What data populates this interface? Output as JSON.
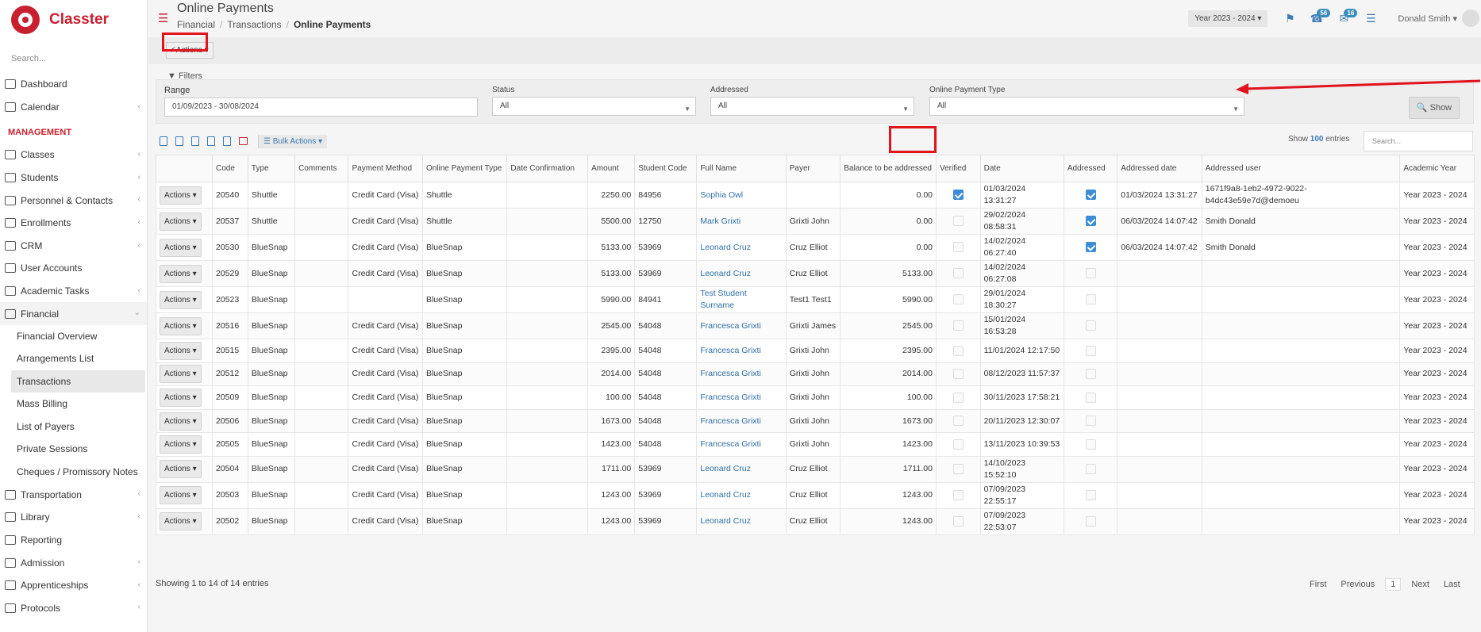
{
  "app": {
    "name": "Classter",
    "search_placeholder": "Search..."
  },
  "sidebar": {
    "top_items": [
      {
        "label": "Dashboard",
        "icon": "laptop-icon"
      },
      {
        "label": "Calendar",
        "icon": "calendar-icon",
        "chevron": "‹"
      }
    ],
    "section": "MANAGEMENT",
    "items": [
      {
        "label": "Classes",
        "icon": "classes-icon",
        "chevron": "‹"
      },
      {
        "label": "Students",
        "icon": "students-icon",
        "chevron": "‹"
      },
      {
        "label": "Personnel & Contacts",
        "icon": "personnel-icon",
        "chevron": "‹"
      },
      {
        "label": "Enrollments",
        "icon": "enrollments-icon",
        "chevron": "‹"
      },
      {
        "label": "CRM",
        "icon": "crm-icon",
        "chevron": "‹"
      },
      {
        "label": "User Accounts",
        "icon": "key-icon"
      },
      {
        "label": "Academic Tasks",
        "icon": "tasks-icon",
        "chevron": "‹"
      },
      {
        "label": "Financial",
        "icon": "financial-icon",
        "chevron": "⌄"
      }
    ],
    "financial_sub": [
      "Financial Overview",
      "Arrangements List",
      "Transactions",
      "Mass Billing",
      "List of Payers",
      "Private Sessions",
      "Cheques / Promissory Notes"
    ],
    "bottom_items": [
      {
        "label": "Transportation",
        "icon": "bus-icon",
        "chevron": "‹"
      },
      {
        "label": "Library",
        "icon": "library-icon",
        "chevron": "‹"
      },
      {
        "label": "Reporting",
        "icon": "printer-icon"
      },
      {
        "label": "Admission",
        "icon": "admission-icon",
        "chevron": "‹"
      },
      {
        "label": "Apprenticeships",
        "icon": "apprentice-icon",
        "chevron": "‹"
      },
      {
        "label": "Protocols",
        "icon": "protocols-icon",
        "chevron": "‹"
      }
    ]
  },
  "header": {
    "title": "Online Payments",
    "breadcrumb": [
      "Financial",
      "Transactions",
      "Online Payments"
    ],
    "year": "Year 2023 - 2024",
    "notifications": "56",
    "messages": "16",
    "user": "Donald Smith"
  },
  "toolbar": {
    "actions_label": "Actions"
  },
  "filters": {
    "title": "Filters",
    "range_label": "Range",
    "range_value": "01/09/2023 - 30/08/2024",
    "status_label": "Status",
    "status_value": "All",
    "addressed_label": "Addressed",
    "addressed_value": "All",
    "type_label": "Online Payment Type",
    "type_value": "All",
    "show_label": "Show"
  },
  "table_tools": {
    "bulk_label": "Bulk Actions",
    "show_prefix": "Show",
    "show_count": "100",
    "show_suffix": "entries",
    "search_placeholder": "Search..."
  },
  "columns": [
    "",
    "Code",
    "Type",
    "Comments",
    "Payment Method",
    "Online Payment Type",
    "Date Confirmation",
    "Amount",
    "Student Code",
    "Full Name",
    "Payer",
    "Balance to be addressed",
    "Verified",
    "Date",
    "Addressed",
    "Addressed date",
    "Addressed user",
    "Academic Year"
  ],
  "row_action_label": "Actions",
  "rows": [
    {
      "code": "20540",
      "type": "Shuttle",
      "method": "Credit Card (Visa)",
      "optype": "Shuttle",
      "amount": "2250.00",
      "scode": "84956",
      "name": "Sophia Owl",
      "payer": "",
      "balance": "0.00",
      "verified": true,
      "date": "01/03/2024 13:31:27",
      "addressed": true,
      "adate": "01/03/2024 13:31:27",
      "auser": "1671f9a8-1eb2-4972-9022-b4dc43e59e7d@demoeu",
      "year": "Year 2023 - 2024"
    },
    {
      "code": "20537",
      "type": "Shuttle",
      "method": "Credit Card (Visa)",
      "optype": "Shuttle",
      "amount": "5500.00",
      "scode": "12750",
      "name": "Mark Grixti",
      "payer": "Grixti John",
      "balance": "0.00",
      "verified": false,
      "date": "29/02/2024 08:58:31",
      "addressed": true,
      "adate": "06/03/2024 14:07:42",
      "auser": "Smith Donald",
      "year": "Year 2023 - 2024"
    },
    {
      "code": "20530",
      "type": "BlueSnap",
      "method": "Credit Card (Visa)",
      "optype": "BlueSnap",
      "amount": "5133.00",
      "scode": "53969",
      "name": "Leonard Cruz",
      "payer": "Cruz Elliot",
      "balance": "0.00",
      "verified": false,
      "date": "14/02/2024 06:27:40",
      "addressed": true,
      "adate": "06/03/2024 14:07:42",
      "auser": "Smith Donald",
      "year": "Year 2023 - 2024"
    },
    {
      "code": "20529",
      "type": "BlueSnap",
      "method": "Credit Card (Visa)",
      "optype": "BlueSnap",
      "amount": "5133.00",
      "scode": "53969",
      "name": "Leonard Cruz",
      "payer": "Cruz Elliot",
      "balance": "5133.00",
      "verified": false,
      "date": "14/02/2024 06:27:08",
      "addressed": false,
      "adate": "",
      "auser": "",
      "year": "Year 2023 - 2024"
    },
    {
      "code": "20523",
      "type": "BlueSnap",
      "method": "",
      "optype": "BlueSnap",
      "amount": "5990.00",
      "scode": "84941",
      "name": "Test Student Surname",
      "payer": "Test1 Test1",
      "balance": "5990.00",
      "verified": false,
      "date": "29/01/2024 18:30:27",
      "addressed": false,
      "adate": "",
      "auser": "",
      "year": "Year 2023 - 2024"
    },
    {
      "code": "20516",
      "type": "BlueSnap",
      "method": "Credit Card (Visa)",
      "optype": "BlueSnap",
      "amount": "2545.00",
      "scode": "54048",
      "name": "Francesca Grixti",
      "payer": "Grixti James",
      "balance": "2545.00",
      "verified": false,
      "date": "15/01/2024 16:53:28",
      "addressed": false,
      "adate": "",
      "auser": "",
      "year": "Year 2023 - 2024"
    },
    {
      "code": "20515",
      "type": "BlueSnap",
      "method": "Credit Card (Visa)",
      "optype": "BlueSnap",
      "amount": "2395.00",
      "scode": "54048",
      "name": "Francesca Grixti",
      "payer": "Grixti John",
      "balance": "2395.00",
      "verified": false,
      "date": "11/01/2024 12:17:50",
      "addressed": false,
      "adate": "",
      "auser": "",
      "year": "Year 2023 - 2024"
    },
    {
      "code": "20512",
      "type": "BlueSnap",
      "method": "Credit Card (Visa)",
      "optype": "BlueSnap",
      "amount": "2014.00",
      "scode": "54048",
      "name": "Francesca Grixti",
      "payer": "Grixti John",
      "balance": "2014.00",
      "verified": false,
      "date": "08/12/2023 11:57:37",
      "addressed": false,
      "adate": "",
      "auser": "",
      "year": "Year 2023 - 2024"
    },
    {
      "code": "20509",
      "type": "BlueSnap",
      "method": "Credit Card (Visa)",
      "optype": "BlueSnap",
      "amount": "100.00",
      "scode": "54048",
      "name": "Francesca Grixti",
      "payer": "Grixti John",
      "balance": "100.00",
      "verified": false,
      "date": "30/11/2023 17:58:21",
      "addressed": false,
      "adate": "",
      "auser": "",
      "year": "Year 2023 - 2024"
    },
    {
      "code": "20506",
      "type": "BlueSnap",
      "method": "Credit Card (Visa)",
      "optype": "BlueSnap",
      "amount": "1673.00",
      "scode": "54048",
      "name": "Francesca Grixti",
      "payer": "Grixti John",
      "balance": "1673.00",
      "verified": false,
      "date": "20/11/2023 12:30:07",
      "addressed": false,
      "adate": "",
      "auser": "",
      "year": "Year 2023 - 2024"
    },
    {
      "code": "20505",
      "type": "BlueSnap",
      "method": "Credit Card (Visa)",
      "optype": "BlueSnap",
      "amount": "1423.00",
      "scode": "54048",
      "name": "Francesca Grixti",
      "payer": "Grixti John",
      "balance": "1423.00",
      "verified": false,
      "date": "13/11/2023 10:39:53",
      "addressed": false,
      "adate": "",
      "auser": "",
      "year": "Year 2023 - 2024"
    },
    {
      "code": "20504",
      "type": "BlueSnap",
      "method": "Credit Card (Visa)",
      "optype": "BlueSnap",
      "amount": "1711.00",
      "scode": "53969",
      "name": "Leonard Cruz",
      "payer": "Cruz Elliot",
      "balance": "1711.00",
      "verified": false,
      "date": "14/10/2023 15:52:10",
      "addressed": false,
      "adate": "",
      "auser": "",
      "year": "Year 2023 - 2024"
    },
    {
      "code": "20503",
      "type": "BlueSnap",
      "method": "Credit Card (Visa)",
      "optype": "BlueSnap",
      "amount": "1243.00",
      "scode": "53969",
      "name": "Leonard Cruz",
      "payer": "Cruz Elliot",
      "balance": "1243.00",
      "verified": false,
      "date": "07/09/2023 22:55:17",
      "addressed": false,
      "adate": "",
      "auser": "",
      "year": "Year 2023 - 2024"
    },
    {
      "code": "20502",
      "type": "BlueSnap",
      "method": "Credit Card (Visa)",
      "optype": "BlueSnap",
      "amount": "1243.00",
      "scode": "53969",
      "name": "Leonard Cruz",
      "payer": "Cruz Elliot",
      "balance": "1243.00",
      "verified": false,
      "date": "07/09/2023 22:53:07",
      "addressed": false,
      "adate": "",
      "auser": "",
      "year": "Year 2023 - 2024"
    }
  ],
  "footer": {
    "info": "Showing 1 to 14 of 14 entries",
    "first": "First",
    "previous": "Previous",
    "page": "1",
    "next": "Next",
    "last": "Last"
  },
  "colors": {
    "brand": "#c8202f",
    "link": "#2f6fa6",
    "highlight": "#e1131c"
  }
}
